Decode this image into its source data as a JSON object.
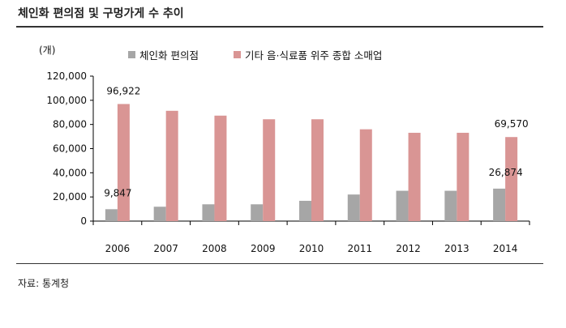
{
  "title": "체인화 편의점 및 구멍가게 수 추이",
  "source": "자료: 통계청",
  "chart_data": {
    "type": "bar",
    "unit_label": "(개)",
    "categories": [
      "2006",
      "2007",
      "2008",
      "2009",
      "2010",
      "2011",
      "2012",
      "2013",
      "2014"
    ],
    "series": [
      {
        "name": "체인화 편의점",
        "color": "#a6a6a6",
        "values": [
          9847,
          11900,
          13900,
          13900,
          16800,
          22000,
          25100,
          25100,
          26874
        ]
      },
      {
        "name": "기타 음·식료품 위주 종합 소매업",
        "color": "#d99594",
        "values": [
          96922,
          91300,
          87300,
          84300,
          84300,
          76000,
          73100,
          73100,
          69570
        ]
      }
    ],
    "data_labels": [
      {
        "series": 0,
        "index": 0,
        "text": "9,847"
      },
      {
        "series": 1,
        "index": 0,
        "text": "96,922"
      },
      {
        "series": 0,
        "index": 8,
        "text": "26,874"
      },
      {
        "series": 1,
        "index": 8,
        "text": "69,570"
      }
    ],
    "ylim": [
      0,
      120000
    ],
    "yticks": [
      "0",
      "20,000",
      "40,000",
      "60,000",
      "80,000",
      "100,000",
      "120,000"
    ],
    "legend": "top",
    "grid": false
  }
}
